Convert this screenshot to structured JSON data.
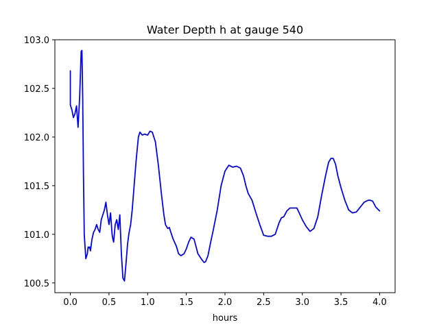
{
  "chart_data": {
    "type": "line",
    "title": "Water Depth h at gauge 540",
    "xlabel": "hours",
    "ylabel": "",
    "xlim": [
      -0.2,
      4.2
    ],
    "ylim": [
      100.4,
      103.0
    ],
    "xticks": [
      0.0,
      0.5,
      1.0,
      1.5,
      2.0,
      2.5,
      3.0,
      3.5,
      4.0
    ],
    "xtick_labels": [
      "0.0",
      "0.5",
      "1.0",
      "1.5",
      "2.0",
      "2.5",
      "3.0",
      "3.5",
      "4.0"
    ],
    "yticks": [
      100.5,
      101.0,
      101.5,
      102.0,
      102.5,
      103.0
    ],
    "ytick_labels": [
      "100.5",
      "101.0",
      "101.5",
      "102.0",
      "102.5",
      "103.0"
    ],
    "grid": false,
    "series": [
      {
        "color": "#0000ff",
        "x": [
          0.0,
          0.0,
          0.02,
          0.04,
          0.06,
          0.08,
          0.1,
          0.12,
          0.14,
          0.15,
          0.16,
          0.17,
          0.18,
          0.2,
          0.22,
          0.23,
          0.24,
          0.25,
          0.26,
          0.28,
          0.3,
          0.32,
          0.34,
          0.36,
          0.38,
          0.4,
          0.42,
          0.44,
          0.46,
          0.48,
          0.5,
          0.52,
          0.54,
          0.55,
          0.56,
          0.58,
          0.6,
          0.62,
          0.64,
          0.66,
          0.68,
          0.7,
          0.72,
          0.74,
          0.76,
          0.78,
          0.8,
          0.82,
          0.85,
          0.88,
          0.9,
          0.93,
          0.96,
          1.0,
          1.03,
          1.06,
          1.1,
          1.14,
          1.18,
          1.21,
          1.23,
          1.26,
          1.28,
          1.3,
          1.33,
          1.37,
          1.4,
          1.43,
          1.47,
          1.5,
          1.53,
          1.56,
          1.6,
          1.65,
          1.7,
          1.73,
          1.75,
          1.78,
          1.81,
          1.85,
          1.9,
          1.95,
          2.0,
          2.05,
          2.1,
          2.15,
          2.2,
          2.24,
          2.27,
          2.3,
          2.35,
          2.4,
          2.45,
          2.5,
          2.55,
          2.6,
          2.65,
          2.7,
          2.73,
          2.76,
          2.8,
          2.84,
          2.88,
          2.9,
          2.93,
          2.96,
          3.0,
          3.05,
          3.1,
          3.15,
          3.2,
          3.25,
          3.3,
          3.34,
          3.37,
          3.4,
          3.43,
          3.46,
          3.5,
          3.55,
          3.6,
          3.65,
          3.7,
          3.75,
          3.8,
          3.85,
          3.88,
          3.91,
          3.95,
          4.0
        ],
        "y": [
          102.68,
          102.33,
          102.28,
          102.2,
          102.24,
          102.32,
          102.1,
          102.4,
          102.88,
          102.89,
          102.4,
          101.6,
          101.0,
          100.75,
          100.8,
          100.87,
          100.86,
          100.87,
          100.83,
          100.95,
          101.02,
          101.05,
          101.1,
          101.05,
          101.02,
          101.15,
          101.2,
          101.25,
          101.33,
          101.2,
          101.1,
          101.22,
          101.0,
          100.95,
          100.92,
          101.1,
          101.15,
          101.05,
          101.2,
          100.8,
          100.55,
          100.52,
          100.7,
          100.9,
          101.02,
          101.1,
          101.25,
          101.45,
          101.75,
          102.0,
          102.05,
          102.02,
          102.03,
          102.02,
          102.06,
          102.05,
          101.95,
          101.7,
          101.4,
          101.2,
          101.1,
          101.06,
          101.07,
          101.02,
          100.95,
          100.88,
          100.8,
          100.78,
          100.8,
          100.85,
          100.92,
          100.97,
          100.95,
          100.8,
          100.74,
          100.71,
          100.72,
          100.78,
          100.9,
          101.05,
          101.25,
          101.5,
          101.65,
          101.71,
          101.69,
          101.7,
          101.68,
          101.6,
          101.5,
          101.42,
          101.35,
          101.22,
          101.1,
          100.99,
          100.98,
          100.98,
          101.0,
          101.12,
          101.17,
          101.18,
          101.24,
          101.27,
          101.27,
          101.27,
          101.27,
          101.22,
          101.15,
          101.08,
          101.03,
          101.06,
          101.18,
          101.4,
          101.6,
          101.74,
          101.78,
          101.78,
          101.72,
          101.6,
          101.48,
          101.35,
          101.25,
          101.22,
          101.23,
          101.28,
          101.33,
          101.35,
          101.35,
          101.34,
          101.28,
          101.24
        ]
      }
    ]
  }
}
